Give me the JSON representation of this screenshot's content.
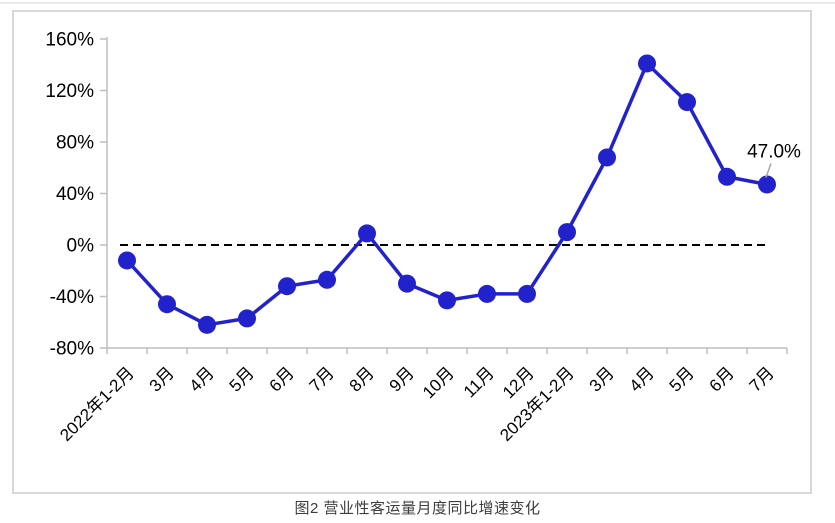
{
  "page": {
    "caption": "图2  营业性客运量月度同比增速变化"
  },
  "chart_data": {
    "type": "line",
    "title": "",
    "xlabel": "",
    "ylabel": "",
    "categories": [
      "2022年1-2月",
      "3月",
      "4月",
      "5月",
      "6月",
      "7月",
      "8月",
      "9月",
      "10月",
      "11月",
      "12月",
      "2023年1-2月",
      "3月",
      "4月",
      "5月",
      "6月",
      "7月"
    ],
    "series": [
      {
        "name": "营业性客运量月度同比增速",
        "values": [
          -12,
          -46,
          -62,
          -57,
          -32,
          -27,
          9,
          -30,
          -43,
          -38,
          -38,
          10,
          68,
          141,
          111,
          53,
          47
        ]
      }
    ],
    "ylim": [
      -80,
      160
    ],
    "y_ticks": [
      {
        "value": 160,
        "label": "160%"
      },
      {
        "value": 120,
        "label": "120%"
      },
      {
        "value": 80,
        "label": "80%"
      },
      {
        "value": 40,
        "label": "40%"
      },
      {
        "value": 0,
        "label": "0%"
      },
      {
        "value": -40,
        "label": "-40%"
      },
      {
        "value": -80,
        "label": "-80%"
      }
    ],
    "grid": false,
    "legend": "none",
    "zero_line": {
      "style": "dashed",
      "color": "#000000"
    },
    "annotation": {
      "text": "47.0%",
      "target_index": 16
    },
    "colors": {
      "line": "#2222cc",
      "marker": "#2222cc",
      "axis": "#bfbfbf",
      "leader": "#a6a6a6",
      "annotation_text": "#000000"
    }
  }
}
